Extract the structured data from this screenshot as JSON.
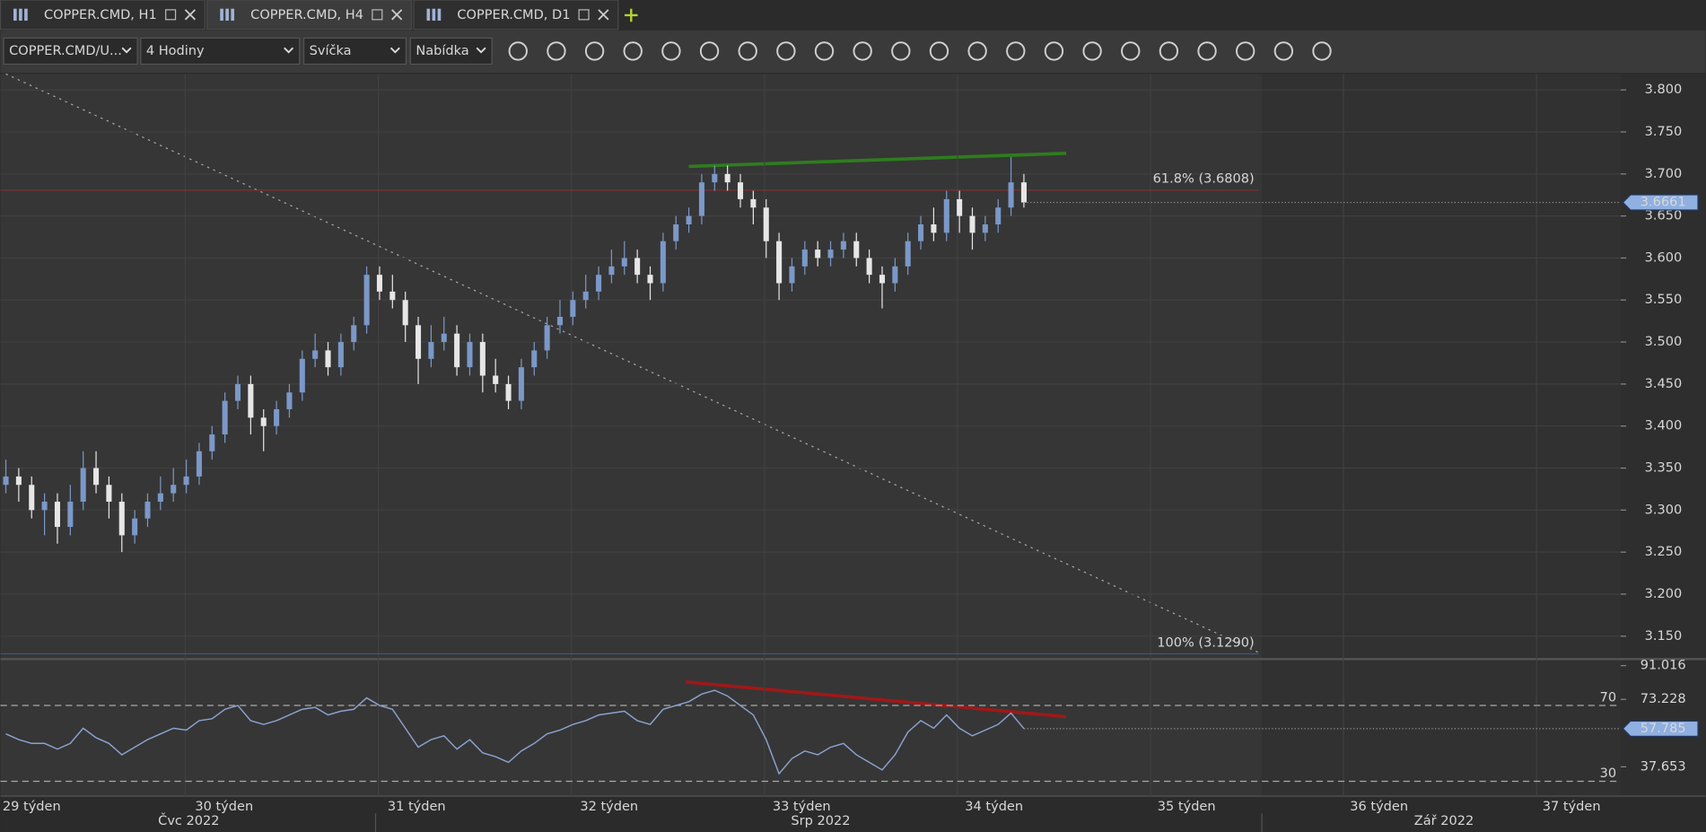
{
  "tabs": [
    {
      "label": "COPPER.CMD, H1"
    },
    {
      "label": "COPPER.CMD, H4"
    },
    {
      "label": "COPPER.CMD, D1"
    }
  ],
  "toolbar": {
    "symbol": "COPPER.CMD/U...",
    "timeframe": "4 Hodiny",
    "chart_style": "Svíčka",
    "price_type": "Nabídka"
  },
  "chart_data": [
    {
      "type": "candlestick",
      "up_color": "#7b98c8",
      "down_color": "#e6e6e6",
      "open": [
        3.33,
        3.34,
        3.33,
        3.3,
        3.31,
        3.28,
        3.31,
        3.35,
        3.33,
        3.31,
        3.27,
        3.29,
        3.31,
        3.32,
        3.33,
        3.34,
        3.37,
        3.39,
        3.43,
        3.45,
        3.41,
        3.4,
        3.42,
        3.44,
        3.48,
        3.49,
        3.47,
        3.5,
        3.52,
        3.58,
        3.56,
        3.55,
        3.52,
        3.48,
        3.5,
        3.51,
        3.47,
        3.5,
        3.46,
        3.45,
        3.43,
        3.47,
        3.49,
        3.52,
        3.53,
        3.55,
        3.56,
        3.58,
        3.59,
        3.6,
        3.58,
        3.57,
        3.62,
        3.64,
        3.65,
        3.69,
        3.7,
        3.69,
        3.67,
        3.66,
        3.62,
        3.57,
        3.59,
        3.61,
        3.6,
        3.61,
        3.62,
        3.6,
        3.58,
        3.57,
        3.59,
        3.62,
        3.64,
        3.63,
        3.67,
        3.65,
        3.63,
        3.64,
        3.66,
        3.69
      ],
      "high": [
        3.36,
        3.35,
        3.34,
        3.32,
        3.32,
        3.33,
        3.37,
        3.37,
        3.34,
        3.32,
        3.3,
        3.32,
        3.34,
        3.35,
        3.36,
        3.38,
        3.4,
        3.44,
        3.46,
        3.46,
        3.42,
        3.43,
        3.45,
        3.49,
        3.51,
        3.5,
        3.51,
        3.53,
        3.59,
        3.59,
        3.58,
        3.56,
        3.53,
        3.52,
        3.53,
        3.52,
        3.51,
        3.51,
        3.48,
        3.46,
        3.48,
        3.5,
        3.53,
        3.55,
        3.56,
        3.58,
        3.59,
        3.61,
        3.62,
        3.61,
        3.59,
        3.63,
        3.65,
        3.66,
        3.7,
        3.71,
        3.71,
        3.7,
        3.68,
        3.67,
        3.63,
        3.6,
        3.62,
        3.62,
        3.62,
        3.63,
        3.63,
        3.61,
        3.59,
        3.6,
        3.63,
        3.65,
        3.66,
        3.68,
        3.68,
        3.66,
        3.65,
        3.67,
        3.72,
        3.7
      ],
      "low": [
        3.32,
        3.31,
        3.29,
        3.27,
        3.26,
        3.27,
        3.3,
        3.32,
        3.29,
        3.25,
        3.26,
        3.28,
        3.3,
        3.31,
        3.32,
        3.33,
        3.36,
        3.38,
        3.42,
        3.39,
        3.37,
        3.39,
        3.41,
        3.43,
        3.47,
        3.46,
        3.46,
        3.49,
        3.51,
        3.55,
        3.54,
        3.5,
        3.45,
        3.47,
        3.49,
        3.46,
        3.46,
        3.44,
        3.44,
        3.42,
        3.42,
        3.46,
        3.48,
        3.51,
        3.52,
        3.54,
        3.55,
        3.57,
        3.58,
        3.57,
        3.55,
        3.56,
        3.61,
        3.63,
        3.64,
        3.68,
        3.68,
        3.66,
        3.64,
        3.6,
        3.55,
        3.56,
        3.58,
        3.59,
        3.59,
        3.6,
        3.59,
        3.57,
        3.54,
        3.56,
        3.58,
        3.61,
        3.62,
        3.62,
        3.63,
        3.61,
        3.62,
        3.63,
        3.65,
        3.66
      ],
      "close": [
        3.34,
        3.33,
        3.3,
        3.31,
        3.28,
        3.31,
        3.35,
        3.33,
        3.31,
        3.27,
        3.29,
        3.31,
        3.32,
        3.33,
        3.34,
        3.37,
        3.39,
        3.43,
        3.45,
        3.41,
        3.4,
        3.42,
        3.44,
        3.48,
        3.49,
        3.47,
        3.5,
        3.52,
        3.58,
        3.56,
        3.55,
        3.52,
        3.48,
        3.5,
        3.51,
        3.47,
        3.5,
        3.46,
        3.45,
        3.43,
        3.47,
        3.49,
        3.52,
        3.53,
        3.55,
        3.56,
        3.58,
        3.59,
        3.6,
        3.58,
        3.57,
        3.62,
        3.64,
        3.65,
        3.69,
        3.7,
        3.69,
        3.67,
        3.66,
        3.62,
        3.57,
        3.59,
        3.61,
        3.6,
        3.61,
        3.62,
        3.6,
        3.58,
        3.57,
        3.59,
        3.62,
        3.64,
        3.63,
        3.67,
        3.65,
        3.63,
        3.64,
        3.66,
        3.69,
        3.6661
      ],
      "ylim": [
        3.124,
        3.819
      ],
      "yticks": [
        {
          "value": 3.8,
          "label": "3.800"
        },
        {
          "value": 3.75,
          "label": "3.750"
        },
        {
          "value": 3.7,
          "label": "3.700"
        },
        {
          "value": 3.65,
          "label": "3.650"
        },
        {
          "value": 3.6,
          "label": "3.600"
        },
        {
          "value": 3.55,
          "label": "3.550"
        },
        {
          "value": 3.5,
          "label": "3.500"
        },
        {
          "value": 3.45,
          "label": "3.450"
        },
        {
          "value": 3.4,
          "label": "3.400"
        },
        {
          "value": 3.35,
          "label": "3.350"
        },
        {
          "value": 3.3,
          "label": "3.300"
        },
        {
          "value": 3.25,
          "label": "3.250"
        },
        {
          "value": 3.2,
          "label": "3.200"
        },
        {
          "value": 3.15,
          "label": "3.150"
        }
      ],
      "fib_levels": [
        {
          "value": 3.6808,
          "label": "61.8% (3.6808)",
          "color": "#c62828"
        },
        {
          "value": 3.129,
          "label": "100% (3.1290)",
          "color": "#3f6fb5"
        }
      ]
    },
    {
      "type": "line",
      "color": "#8aa3cf",
      "values": [
        55,
        52,
        50,
        50,
        47,
        50,
        58,
        53,
        50,
        44,
        48,
        52,
        55,
        58,
        57,
        62,
        63,
        68,
        70,
        62,
        60,
        62,
        65,
        68,
        69,
        65,
        67,
        68,
        74,
        70,
        68,
        58,
        48,
        52,
        54,
        47,
        52,
        45,
        43,
        40,
        46,
        50,
        55,
        57,
        60,
        62,
        65,
        66,
        67,
        62,
        60,
        68,
        70,
        72,
        76,
        78,
        75,
        70,
        65,
        52,
        34,
        42,
        46,
        44,
        48,
        50,
        44,
        40,
        36,
        44,
        56,
        62,
        58,
        65,
        58,
        54,
        57,
        60,
        66,
        57.785
      ],
      "ylim": [
        22.2,
        93.9
      ],
      "yticks": [
        91.016,
        73.228,
        37.653
      ],
      "levels": [
        70,
        30
      ]
    }
  ],
  "time_axis": {
    "weeks": [
      "29 týden",
      "30 týden",
      "31 týden",
      "32 týden",
      "33 týden",
      "34 týden",
      "35 týden",
      "36 týden",
      "37 týden"
    ],
    "months": [
      "Čvc 2022",
      "Srp 2022",
      "Zář 2022"
    ]
  }
}
